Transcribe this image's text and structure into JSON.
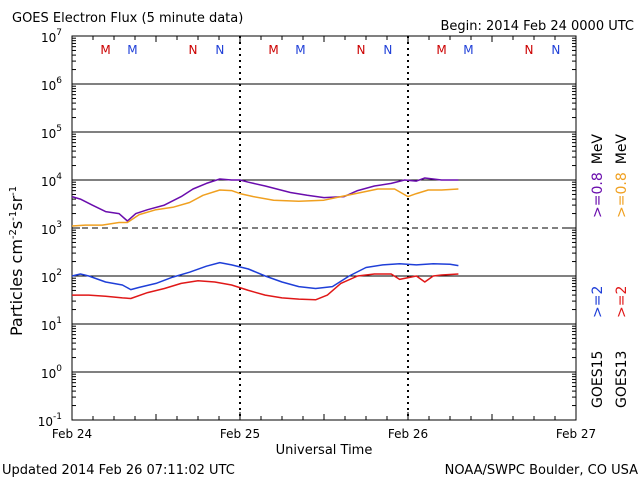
{
  "header": {
    "title": "GOES Electron Flux (5 minute data)",
    "begin": "Begin: 2014 Feb 24 0000 UTC"
  },
  "footer": {
    "updated": "Updated 2014 Feb 26 07:11:02 UTC",
    "source": "NOAA/SWPC Boulder, CO USA"
  },
  "colors": {
    "goes15_high": "#6a0dad",
    "goes13_high": "#f0a020",
    "goes15_low": "#1f3fd8",
    "goes13_low": "#e01818",
    "marker_m": "#cc0000",
    "marker_n_red": "#cc0000",
    "marker_n_blue": "#1f3fd8"
  },
  "chart_data": {
    "type": "line",
    "title": "GOES Electron Flux (5 minute data)",
    "xlabel": "Universal Time",
    "ylabel": "Particles cm-2 s-1 sr-1",
    "yscale": "log",
    "ylim_exp": [
      -1,
      7
    ],
    "y_tick_exps": [
      7,
      6,
      5,
      4,
      3,
      2,
      1,
      0,
      -1
    ],
    "x_day_range": [
      0,
      3
    ],
    "x_ticks": [
      {
        "day": 0,
        "label": "Feb 24"
      },
      {
        "day": 1,
        "label": "Feb 25"
      },
      {
        "day": 2,
        "label": "Feb 26"
      },
      {
        "day": 3,
        "label": "Feb 27"
      }
    ],
    "dashed_reference_exp": 3,
    "day_boundaries": [
      1,
      2
    ],
    "markers": [
      {
        "day": 0.2,
        "text": "M",
        "color": "#cc0000"
      },
      {
        "day": 0.36,
        "text": "M",
        "color": "#1f3fd8"
      },
      {
        "day": 0.72,
        "text": "N",
        "color": "#cc0000"
      },
      {
        "day": 0.88,
        "text": "N",
        "color": "#1f3fd8"
      },
      {
        "day": 1.2,
        "text": "M",
        "color": "#cc0000"
      },
      {
        "day": 1.36,
        "text": "M",
        "color": "#1f3fd8"
      },
      {
        "day": 1.72,
        "text": "N",
        "color": "#cc0000"
      },
      {
        "day": 1.88,
        "text": "N",
        "color": "#1f3fd8"
      },
      {
        "day": 2.2,
        "text": "M",
        "color": "#cc0000"
      },
      {
        "day": 2.36,
        "text": "M",
        "color": "#1f3fd8"
      },
      {
        "day": 2.72,
        "text": "N",
        "color": "#cc0000"
      },
      {
        "day": 2.88,
        "text": "N",
        "color": "#1f3fd8"
      }
    ],
    "series": [
      {
        "name": "GOES15 >=0.8 MeV",
        "color": "#6a0dad",
        "points": [
          [
            0,
            4500
          ],
          [
            0.05,
            4000
          ],
          [
            0.12,
            3000
          ],
          [
            0.2,
            2200
          ],
          [
            0.28,
            2000
          ],
          [
            0.33,
            1400
          ],
          [
            0.38,
            2000
          ],
          [
            0.45,
            2400
          ],
          [
            0.55,
            3000
          ],
          [
            0.65,
            4500
          ],
          [
            0.72,
            6500
          ],
          [
            0.8,
            8500
          ],
          [
            0.88,
            10500
          ],
          [
            0.95,
            10000
          ],
          [
            1.0,
            10000
          ],
          [
            1.05,
            9000
          ],
          [
            1.15,
            7500
          ],
          [
            1.3,
            5500
          ],
          [
            1.4,
            4800
          ],
          [
            1.5,
            4300
          ],
          [
            1.62,
            4500
          ],
          [
            1.7,
            6000
          ],
          [
            1.8,
            7500
          ],
          [
            1.9,
            8500
          ],
          [
            1.98,
            10000
          ],
          [
            2.05,
            9500
          ],
          [
            2.1,
            11000
          ],
          [
            2.2,
            10000
          ],
          [
            2.3,
            10000
          ]
        ]
      },
      {
        "name": "GOES13 >=0.8 MeV",
        "color": "#f0a020",
        "points": [
          [
            0,
            1100
          ],
          [
            0.08,
            1150
          ],
          [
            0.18,
            1150
          ],
          [
            0.28,
            1300
          ],
          [
            0.33,
            1300
          ],
          [
            0.4,
            1900
          ],
          [
            0.5,
            2400
          ],
          [
            0.6,
            2700
          ],
          [
            0.7,
            3400
          ],
          [
            0.78,
            4800
          ],
          [
            0.88,
            6200
          ],
          [
            0.95,
            6000
          ],
          [
            1.0,
            5200
          ],
          [
            1.08,
            4500
          ],
          [
            1.2,
            3800
          ],
          [
            1.35,
            3600
          ],
          [
            1.5,
            3800
          ],
          [
            1.6,
            4500
          ],
          [
            1.72,
            5500
          ],
          [
            1.82,
            6500
          ],
          [
            1.92,
            6500
          ],
          [
            2.0,
            4500
          ],
          [
            2.05,
            5200
          ],
          [
            2.12,
            6200
          ],
          [
            2.2,
            6200
          ],
          [
            2.3,
            6500
          ]
        ]
      },
      {
        "name": "GOES15 >=2 MeV",
        "color": "#1f3fd8",
        "points": [
          [
            0,
            100
          ],
          [
            0.05,
            110
          ],
          [
            0.1,
            100
          ],
          [
            0.2,
            75
          ],
          [
            0.3,
            65
          ],
          [
            0.35,
            52
          ],
          [
            0.4,
            58
          ],
          [
            0.5,
            70
          ],
          [
            0.6,
            95
          ],
          [
            0.7,
            120
          ],
          [
            0.8,
            160
          ],
          [
            0.88,
            190
          ],
          [
            0.95,
            170
          ],
          [
            1.05,
            140
          ],
          [
            1.15,
            100
          ],
          [
            1.25,
            75
          ],
          [
            1.35,
            60
          ],
          [
            1.45,
            55
          ],
          [
            1.55,
            60
          ],
          [
            1.65,
            100
          ],
          [
            1.75,
            150
          ],
          [
            1.85,
            170
          ],
          [
            1.95,
            180
          ],
          [
            2.05,
            170
          ],
          [
            2.15,
            180
          ],
          [
            2.25,
            175
          ],
          [
            2.3,
            165
          ]
        ]
      },
      {
        "name": "GOES13 >=2 MeV",
        "color": "#e01818",
        "points": [
          [
            0,
            40
          ],
          [
            0.1,
            40
          ],
          [
            0.2,
            38
          ],
          [
            0.3,
            35
          ],
          [
            0.35,
            34
          ],
          [
            0.45,
            45
          ],
          [
            0.55,
            55
          ],
          [
            0.65,
            70
          ],
          [
            0.75,
            80
          ],
          [
            0.85,
            75
          ],
          [
            0.95,
            65
          ],
          [
            1.05,
            50
          ],
          [
            1.15,
            40
          ],
          [
            1.25,
            35
          ],
          [
            1.35,
            33
          ],
          [
            1.45,
            32
          ],
          [
            1.52,
            40
          ],
          [
            1.6,
            70
          ],
          [
            1.7,
            100
          ],
          [
            1.8,
            110
          ],
          [
            1.9,
            110
          ],
          [
            1.95,
            85
          ],
          [
            2.05,
            100
          ],
          [
            2.1,
            75
          ],
          [
            2.15,
            100
          ],
          [
            2.2,
            105
          ],
          [
            2.3,
            110
          ]
        ]
      }
    ],
    "legend": {
      "placement": "right-vertical",
      "high_energy": [
        {
          "text": ">=0.8",
          "color": "#6a0dad"
        },
        {
          "text": ">=0.8",
          "color": "#f0a020"
        },
        {
          "text": "MeV",
          "color": "#000000"
        }
      ],
      "low_energy": [
        {
          "text": ">=2",
          "color": "#1f3fd8"
        },
        {
          "text": ">=2",
          "color": "#e01818"
        }
      ],
      "satellites": [
        {
          "text": "GOES15",
          "color": "#000000"
        },
        {
          "text": "GOES13",
          "color": "#000000"
        }
      ]
    }
  }
}
